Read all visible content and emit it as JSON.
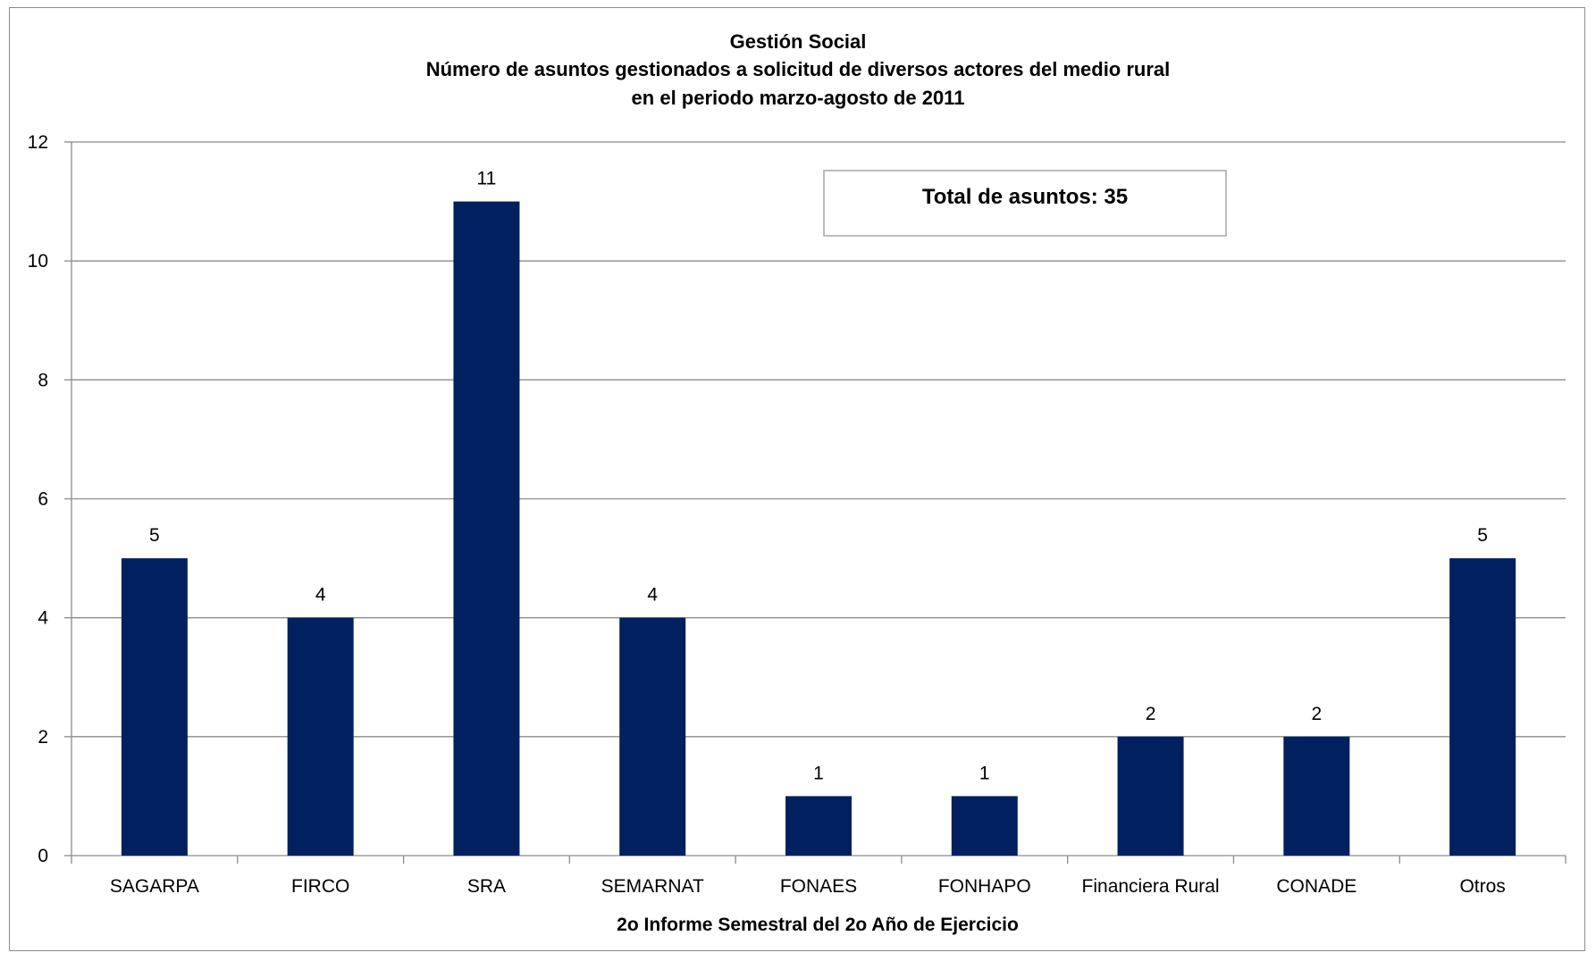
{
  "chart_data": {
    "type": "bar",
    "title_lines": [
      "Gestión Social",
      "Número de asuntos gestionados a solicitud de diversos actores del medio rural",
      "en el periodo marzo-agosto de 2011"
    ],
    "categories": [
      "SAGARPA",
      "FIRCO",
      "SRA",
      "SEMARNAT",
      "FONAES",
      "FONHAPO",
      "Financiera Rural",
      "CONADE",
      "Otros"
    ],
    "values": [
      5,
      4,
      11,
      4,
      1,
      1,
      2,
      2,
      5
    ],
    "xlabel": "2o Informe Semestral del 2o Año de Ejercicio",
    "ylabel": "",
    "ylim": [
      0,
      12
    ],
    "yticks": [
      0,
      2,
      4,
      6,
      8,
      10,
      12
    ],
    "grid": true,
    "legend": "none",
    "bar_color": "#002060",
    "annotation": "Total de asuntos: 35"
  }
}
